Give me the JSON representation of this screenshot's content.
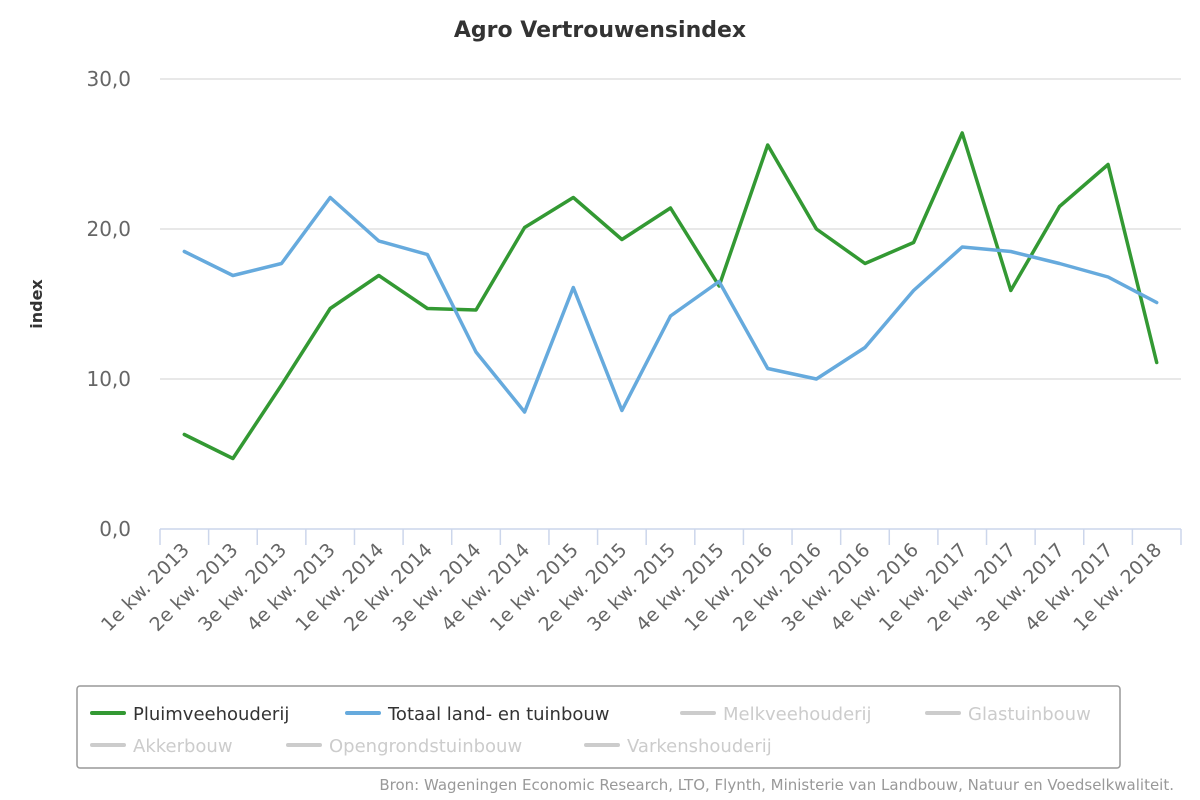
{
  "chart_data": {
    "type": "line",
    "title": "Agro Vertrouwensindex",
    "ylabel": "index",
    "xlabel": "",
    "ylim": [
      0,
      30
    ],
    "yticks": [
      "0,0",
      "10,0",
      "20,0",
      "30,0"
    ],
    "grid": true,
    "legend_position": "bottom",
    "categories": [
      "1e kw. 2013",
      "2e kw. 2013",
      "3e kw. 2013",
      "4e kw. 2013",
      "1e kw. 2014",
      "2e kw. 2014",
      "3e kw. 2014",
      "4e kw. 2014",
      "1e kw. 2015",
      "2e kw. 2015",
      "3e kw. 2015",
      "4e kw. 2015",
      "1e kw. 2016",
      "2e kw. 2016",
      "3e kw. 2016",
      "4e kw. 2016",
      "1e kw. 2017",
      "2e kw. 2017",
      "3e kw. 2017",
      "4e kw. 2017",
      "1e kw. 2018"
    ],
    "series": [
      {
        "name": "Pluimveehouderij",
        "color": "#339933",
        "visible": true,
        "values": [
          6.3,
          4.7,
          9.6,
          14.7,
          16.9,
          14.7,
          14.6,
          20.1,
          22.1,
          19.3,
          21.4,
          16.2,
          25.6,
          20.0,
          17.7,
          19.1,
          26.4,
          15.9,
          21.5,
          24.3,
          11.1
        ]
      },
      {
        "name": "Totaal land- en tuinbouw",
        "color": "#66aadd",
        "visible": true,
        "values": [
          18.5,
          16.9,
          17.7,
          22.1,
          19.2,
          18.3,
          11.8,
          7.8,
          16.1,
          7.9,
          14.2,
          16.5,
          10.7,
          10.0,
          12.1,
          15.9,
          18.8,
          18.5,
          17.7,
          16.8,
          15.1
        ]
      },
      {
        "name": "Melkveehouderij",
        "color": "#cccccc",
        "visible": false
      },
      {
        "name": "Glastuinbouw",
        "color": "#cccccc",
        "visible": false
      },
      {
        "name": "Akkerbouw",
        "color": "#cccccc",
        "visible": false
      },
      {
        "name": "Opengrondstuinbouw",
        "color": "#cccccc",
        "visible": false
      },
      {
        "name": "Varkenshouderij",
        "color": "#cccccc",
        "visible": false
      }
    ],
    "credits": "Bron: Wageningen Economic Research, LTO, Flynth, Ministerie van Landbouw, Natuur en Voedselkwaliteit."
  }
}
